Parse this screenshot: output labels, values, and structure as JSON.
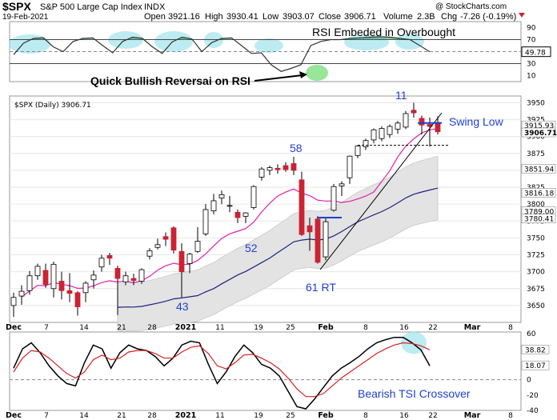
{
  "header": {
    "symbol": "$SPX",
    "name": "S&P 500 Large Cap Index",
    "exchange": "INDX",
    "date": "19-Feb-2021",
    "open_label": "Open",
    "open": "3921.16",
    "high_label": "High",
    "high": "3930.41",
    "low_label": "Low",
    "low": "3903.07",
    "close_label": "Close",
    "close": "3906.71",
    "volume_label": "Volume",
    "volume": "2.3B",
    "chg_label": "Chg",
    "chg": "-7.26 (-0.19%)",
    "brand": "@ StockCharts.com"
  },
  "colors": {
    "up": "#ffffff",
    "down": "#cc2233",
    "ma_fast": "#e01fb0",
    "ma_slow": "#1a237e",
    "rsi": "#333333",
    "tsi": "#000000",
    "tsi_signal": "#d92020",
    "highlight": "#8fe0e8",
    "green": "#7ee07e",
    "blue_line": "#1f3fd1"
  },
  "rsi_panel": {
    "annotation_title": "RSI Embeded in Overbought",
    "annotation_reversal": "Quick Bullish Reversai on RSI",
    "last_value": "49.78",
    "tick_labels": [
      "90",
      "70",
      "50",
      "30",
      "10"
    ]
  },
  "price_panel": {
    "legend": "$SPX (Daily) 3906.71",
    "tick_labels": [
      "3950",
      "3925",
      "3900",
      "3875",
      "3850",
      "3825",
      "3800",
      "3775",
      "3750",
      "3725",
      "3700",
      "3675",
      "3650"
    ],
    "price_tags": [
      "3915.93",
      "3906.71",
      "3851.94",
      "3816.18",
      "3789.00",
      "3780.41"
    ],
    "annotations": {
      "n43": "43",
      "n52": "52",
      "n58": "58",
      "n11": "11",
      "rt": "61 RT",
      "swing": "Swing Low"
    }
  },
  "tsi_panel": {
    "annotation": "Bearish TSI Crossover",
    "tick_labels": [
      "60",
      "40",
      "20",
      "0",
      "-20",
      "-40"
    ],
    "tags": [
      "38.82",
      "18.07"
    ]
  },
  "x_axis_labels": [
    "Dec",
    "7",
    "14",
    "21",
    "28",
    "2021",
    "11",
    "19",
    "25",
    "Feb",
    "8",
    "16",
    "22",
    "Mar",
    "8"
  ],
  "chart_data": [
    {
      "type": "line",
      "title": "RSI",
      "ylim": [
        0,
        100
      ],
      "values": [
        45,
        64,
        72,
        73,
        58,
        50,
        67,
        72,
        73,
        60,
        48,
        67,
        74,
        72,
        58,
        47,
        66,
        74,
        71,
        50,
        65,
        72,
        73,
        60,
        47,
        48,
        28,
        17,
        22,
        28,
        60,
        67,
        70,
        70,
        72,
        73,
        74,
        75,
        74,
        72,
        70,
        60,
        49.78
      ]
    },
    {
      "type": "candlestick",
      "title": "$SPX (Daily)",
      "ylim": [
        3625,
        3960
      ],
      "candles": [
        {
          "o": 3650,
          "h": 3669,
          "l": 3633,
          "c": 3662
        },
        {
          "o": 3664,
          "h": 3680,
          "l": 3651,
          "c": 3671
        },
        {
          "o": 3672,
          "h": 3701,
          "l": 3666,
          "c": 3694
        },
        {
          "o": 3694,
          "h": 3712,
          "l": 3688,
          "c": 3708
        },
        {
          "o": 3702,
          "h": 3712,
          "l": 3676,
          "c": 3681
        },
        {
          "o": 3675,
          "h": 3715,
          "l": 3662,
          "c": 3711
        },
        {
          "o": 3686,
          "h": 3700,
          "l": 3659,
          "c": 3672
        },
        {
          "o": 3672,
          "h": 3698,
          "l": 3655,
          "c": 3668
        },
        {
          "o": 3669,
          "h": 3671,
          "l": 3635,
          "c": 3648
        },
        {
          "o": 3669,
          "h": 3686,
          "l": 3655,
          "c": 3683
        },
        {
          "o": 3688,
          "h": 3702,
          "l": 3675,
          "c": 3695
        },
        {
          "o": 3707,
          "h": 3725,
          "l": 3700,
          "c": 3720
        },
        {
          "o": 3724,
          "h": 3728,
          "l": 3710,
          "c": 3720
        },
        {
          "o": 3705,
          "h": 3709,
          "l": 3636,
          "c": 3690
        },
        {
          "o": 3685,
          "h": 3700,
          "l": 3680,
          "c": 3694
        },
        {
          "o": 3690,
          "h": 3697,
          "l": 3680,
          "c": 3687
        },
        {
          "o": 3686,
          "h": 3705,
          "l": 3682,
          "c": 3703
        },
        {
          "o": 3723,
          "h": 3735,
          "l": 3718,
          "c": 3731
        },
        {
          "o": 3736,
          "h": 3749,
          "l": 3733,
          "c": 3740
        },
        {
          "o": 3752,
          "h": 3758,
          "l": 3738,
          "c": 3748
        },
        {
          "o": 3765,
          "h": 3767,
          "l": 3727,
          "c": 3732
        },
        {
          "o": 3730,
          "h": 3742,
          "l": 3662,
          "c": 3700
        },
        {
          "o": 3712,
          "h": 3728,
          "l": 3698,
          "c": 3726
        },
        {
          "o": 3730,
          "h": 3766,
          "l": 3728,
          "c": 3745
        },
        {
          "o": 3756,
          "h": 3800,
          "l": 3753,
          "c": 3792
        },
        {
          "o": 3790,
          "h": 3815,
          "l": 3785,
          "c": 3805
        },
        {
          "o": 3809,
          "h": 3820,
          "l": 3800,
          "c": 3814
        },
        {
          "o": 3798,
          "h": 3812,
          "l": 3788,
          "c": 3798
        },
        {
          "o": 3788,
          "h": 3792,
          "l": 3772,
          "c": 3780
        },
        {
          "o": 3782,
          "h": 3788,
          "l": 3772,
          "c": 3787
        },
        {
          "o": 3795,
          "h": 3828,
          "l": 3792,
          "c": 3826
        },
        {
          "o": 3840,
          "h": 3855,
          "l": 3835,
          "c": 3852
        },
        {
          "o": 3850,
          "h": 3857,
          "l": 3843,
          "c": 3854
        },
        {
          "o": 3853,
          "h": 3859,
          "l": 3845,
          "c": 3851
        },
        {
          "o": 3857,
          "h": 3862,
          "l": 3848,
          "c": 3851
        },
        {
          "o": 3860,
          "h": 3870,
          "l": 3843,
          "c": 3850
        },
        {
          "o": 3836,
          "h": 3848,
          "l": 3753,
          "c": 3755
        },
        {
          "o": 3768,
          "h": 3780,
          "l": 3731,
          "c": 3759
        },
        {
          "o": 3778,
          "h": 3782,
          "l": 3712,
          "c": 3714
        },
        {
          "o": 3722,
          "h": 3779,
          "l": 3717,
          "c": 3774
        },
        {
          "o": 3791,
          "h": 3830,
          "l": 3789,
          "c": 3826
        },
        {
          "o": 3827,
          "h": 3834,
          "l": 3812,
          "c": 3830
        },
        {
          "o": 3839,
          "h": 3872,
          "l": 3830,
          "c": 3871
        },
        {
          "o": 3872,
          "h": 3887,
          "l": 3868,
          "c": 3886
        },
        {
          "o": 3885,
          "h": 3897,
          "l": 3880,
          "c": 3894
        },
        {
          "o": 3895,
          "h": 3912,
          "l": 3890,
          "c": 3910
        },
        {
          "o": 3897,
          "h": 3915,
          "l": 3893,
          "c": 3912
        },
        {
          "o": 3903,
          "h": 3918,
          "l": 3898,
          "c": 3915
        },
        {
          "o": 3911,
          "h": 3923,
          "l": 3904,
          "c": 3920
        },
        {
          "o": 3914,
          "h": 3938,
          "l": 3911,
          "c": 3934
        },
        {
          "o": 3939,
          "h": 3950,
          "l": 3928,
          "c": 3935
        },
        {
          "o": 3927,
          "h": 3931,
          "l": 3903,
          "c": 3917
        },
        {
          "o": 3918,
          "h": 3928,
          "l": 3885,
          "c": 3915
        },
        {
          "o": 3921,
          "h": 3930,
          "l": 3903,
          "c": 3907
        }
      ]
    },
    {
      "type": "line",
      "title": "TSI",
      "ylim": [
        -40,
        62
      ],
      "series": [
        {
          "values": [
            15,
            40,
            48,
            35,
            18,
            5,
            -5,
            -8,
            22,
            45,
            40,
            15,
            35,
            45,
            40,
            38,
            30,
            18,
            28,
            45,
            50,
            48,
            20,
            -5,
            10,
            30,
            45,
            35,
            20,
            15,
            5,
            -15,
            -35,
            -38,
            -25,
            -10,
            5,
            15,
            22,
            30,
            40,
            48,
            52,
            55,
            55,
            48,
            38.82,
            18.07
          ]
        },
        {
          "values": [
            10,
            28,
            38,
            36,
            28,
            18,
            8,
            2,
            10,
            26,
            32,
            26,
            28,
            36,
            38,
            38,
            34,
            28,
            28,
            36,
            42,
            44,
            34,
            18,
            14,
            22,
            32,
            33,
            28,
            22,
            14,
            2,
            -12,
            -22,
            -22,
            -18,
            -8,
            2,
            10,
            18,
            26,
            34,
            40,
            45,
            48,
            47,
            44,
            38.82
          ]
        }
      ]
    }
  ]
}
